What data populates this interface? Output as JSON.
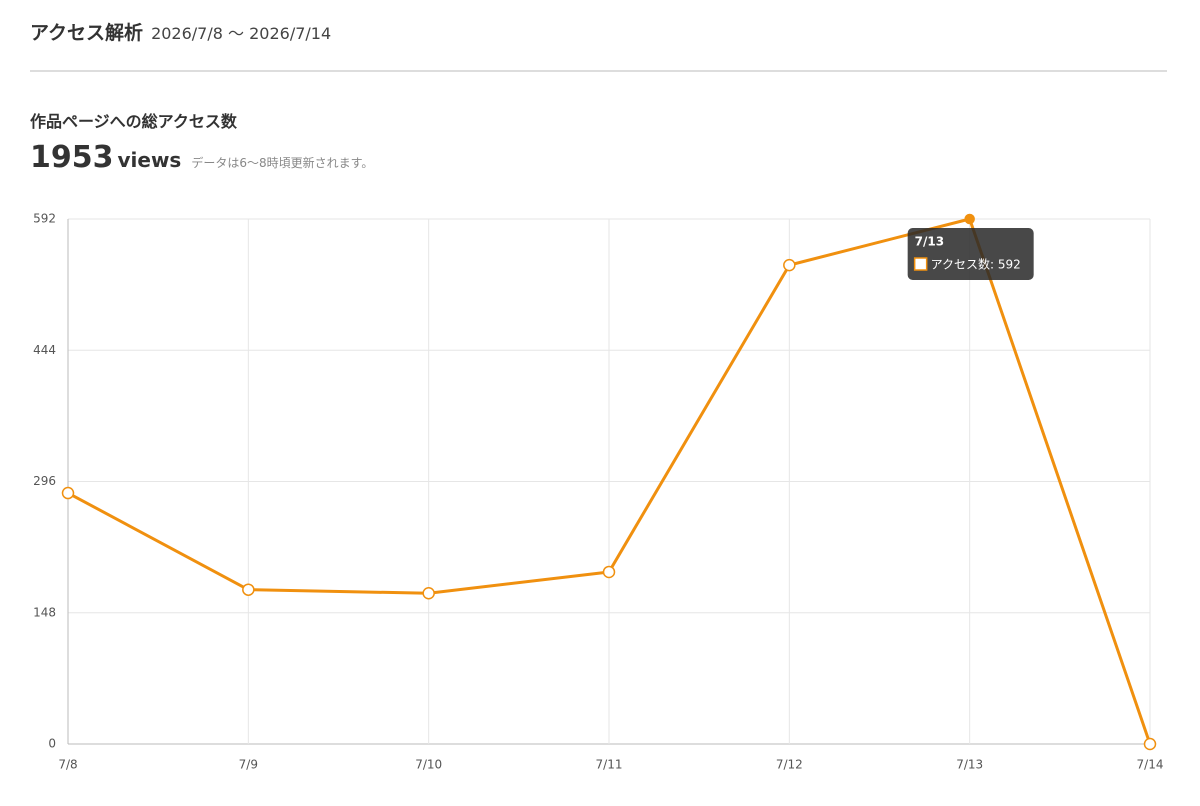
{
  "header": {
    "title": "アクセス解析",
    "range": "2026/7/8 〜 2026/7/14"
  },
  "summary": {
    "label": "作品ページへの総アクセス数",
    "total": 1953,
    "unit": "views",
    "note": "データは6〜8時頃更新されます。"
  },
  "chart_data": {
    "type": "line",
    "categories": [
      "7/8",
      "7/9",
      "7/10",
      "7/11",
      "7/12",
      "7/13",
      "7/14"
    ],
    "series": [
      {
        "name": "アクセス数",
        "color": "#f0900f",
        "values": [
          283,
          174,
          170,
          194,
          540,
          592,
          0
        ]
      }
    ],
    "ylim": [
      0,
      592
    ],
    "yticks": [
      0,
      148,
      296,
      444,
      592
    ],
    "grid": true,
    "tooltip": {
      "title": "7/13",
      "label": "アクセス数: 592"
    }
  }
}
